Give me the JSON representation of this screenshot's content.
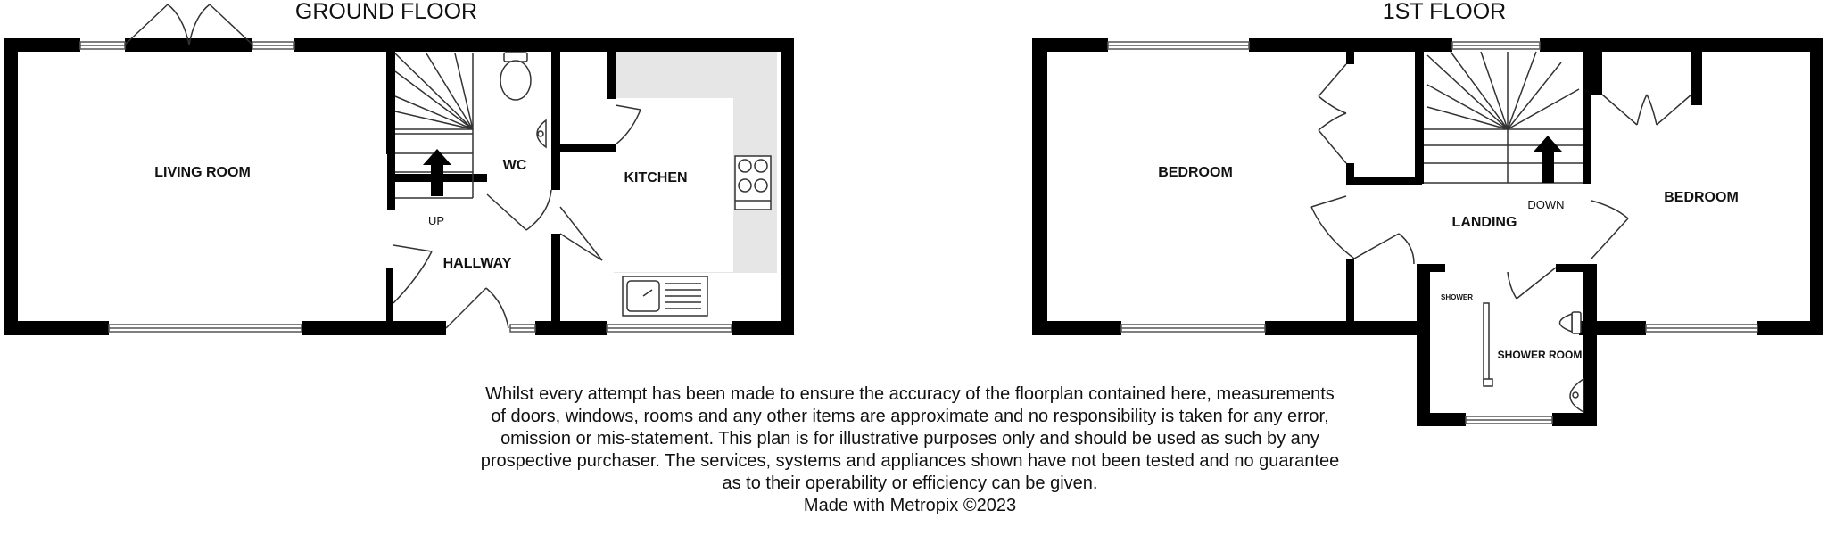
{
  "ground_floor": {
    "title": "GROUND FLOOR",
    "rooms": {
      "living_room": "LIVING ROOM",
      "wc": "WC",
      "kitchen": "KITCHEN",
      "hallway": "HALLWAY",
      "stairs_up": "UP"
    }
  },
  "first_floor": {
    "title": "1ST FLOOR",
    "rooms": {
      "bedroom_left": "BEDROOM",
      "bedroom_right": "BEDROOM",
      "landing": "LANDING",
      "stairs_down": "DOWN",
      "shower": "SHOWER",
      "shower_room": "SHOWER ROOM"
    }
  },
  "disclaimer": {
    "lines": [
      "Whilst every attempt has been made to ensure the accuracy of the floorplan contained here, measurements",
      "of doors, windows, rooms and any other items are approximate and no responsibility is taken for any error,",
      "omission or mis-statement. This plan is for illustrative purposes only and should be used as such by any",
      "prospective purchaser. The services, systems and appliances shown have not been tested and no guarantee",
      "as to their operability or efficiency can be given."
    ],
    "credit": "Made with Metropix ©2023"
  }
}
